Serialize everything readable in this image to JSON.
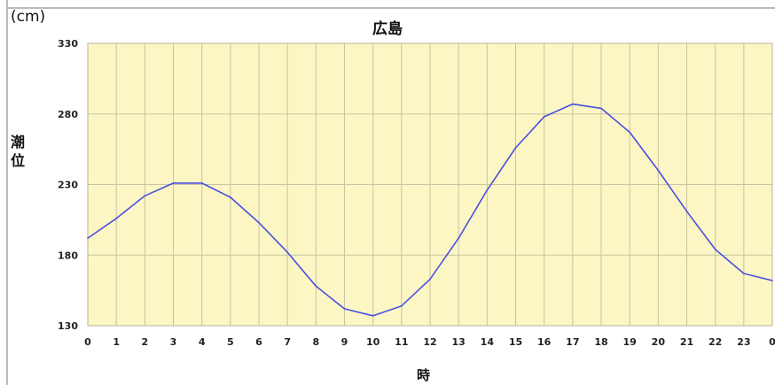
{
  "chart_data": {
    "type": "line",
    "title": "広島",
    "unit_label": "(cm)",
    "ylabel": "潮位",
    "xlabel": "時",
    "x": [
      0,
      1,
      2,
      3,
      4,
      5,
      6,
      7,
      8,
      9,
      10,
      11,
      12,
      13,
      14,
      15,
      16,
      17,
      18,
      19,
      20,
      21,
      22,
      23,
      24
    ],
    "x_tick_labels": [
      "0",
      "1",
      "2",
      "3",
      "4",
      "5",
      "6",
      "7",
      "8",
      "9",
      "10",
      "11",
      "12",
      "13",
      "14",
      "15",
      "16",
      "17",
      "18",
      "19",
      "20",
      "21",
      "22",
      "23",
      "0"
    ],
    "y_ticks": [
      130,
      180,
      230,
      280,
      330
    ],
    "ylim": [
      130,
      330
    ],
    "xlim": [
      0,
      24
    ],
    "grid": true,
    "series": [
      {
        "values": [
          192,
          206,
          222,
          231,
          231,
          221,
          203,
          182,
          158,
          142,
          137,
          144,
          163,
          192,
          226,
          256,
          278,
          287,
          284,
          267,
          240,
          211,
          184,
          167,
          162
        ]
      }
    ],
    "colors": {
      "plot_bg": "#fbf6c4",
      "grid": "#c8c3a0",
      "line": "#4b4fe0"
    }
  }
}
